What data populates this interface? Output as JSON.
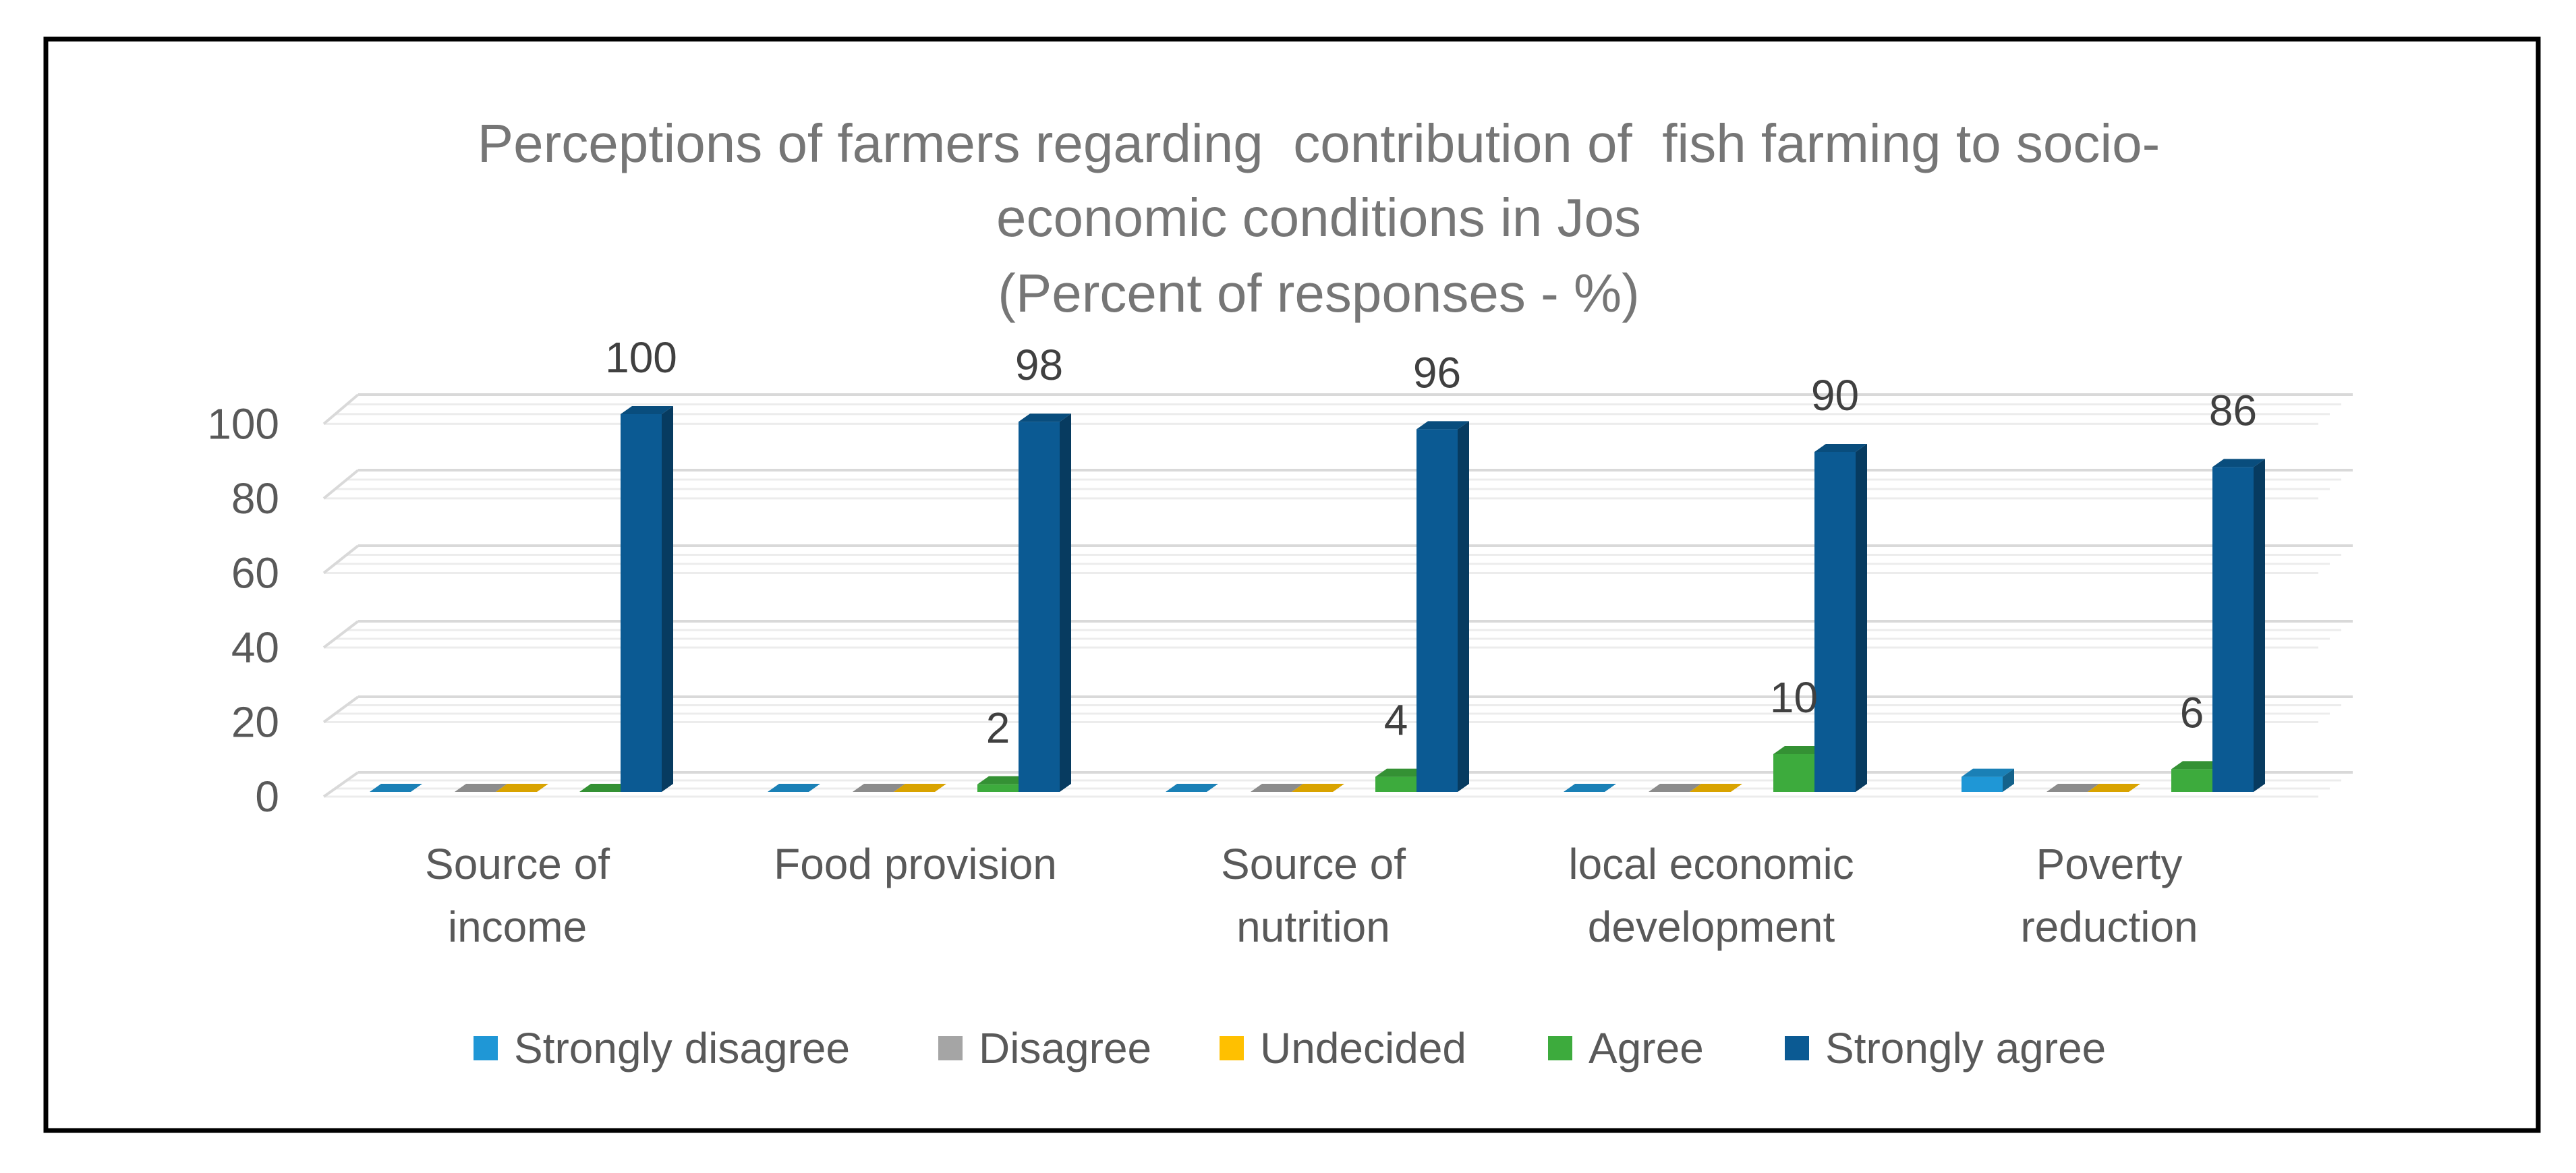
{
  "chart_data": {
    "type": "bar",
    "title_lines": [
      "Perceptions of farmers regarding  contribution of  fish farming to socio-",
      "economic conditions in Jos",
      "(Percent of responses - %)"
    ],
    "categories": [
      [
        "Source of",
        "income"
      ],
      [
        "Food provision"
      ],
      [
        "Source of",
        "nutrition"
      ],
      [
        "local economic",
        "development"
      ],
      [
        "Poverty",
        "reduction"
      ]
    ],
    "series": [
      {
        "name": "Strongly disagree",
        "color": "#1f97d6",
        "values": [
          0,
          0,
          0,
          0,
          4
        ],
        "data_labels": false
      },
      {
        "name": "Disagree",
        "color": "#a5a5a5",
        "values": [
          0,
          0,
          0,
          0,
          0
        ],
        "data_labels": false
      },
      {
        "name": "Undecided",
        "color": "#ffc000",
        "values": [
          0,
          0,
          0,
          0,
          0
        ],
        "data_labels": false
      },
      {
        "name": "Agree",
        "color": "#3dab3d",
        "values": [
          0,
          2,
          4,
          10,
          6
        ],
        "data_labels": true
      },
      {
        "name": "Strongly agree",
        "color": "#0b5a93",
        "values": [
          100,
          98,
          96,
          90,
          86
        ],
        "data_labels": true
      }
    ],
    "y_ticks": [
      0,
      20,
      40,
      60,
      80,
      100
    ],
    "ylim": [
      0,
      100
    ],
    "xlabel": "",
    "ylabel": "",
    "grid": true,
    "legend_position": "bottom"
  }
}
